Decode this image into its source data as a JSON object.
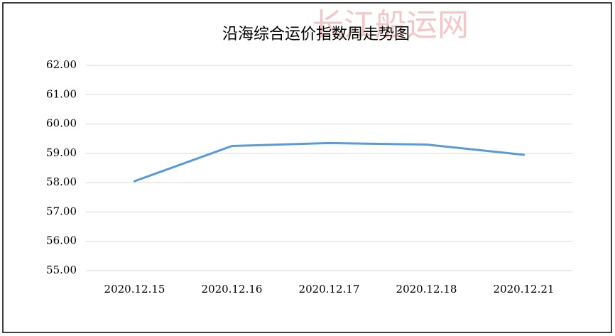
{
  "chart_data": {
    "type": "line",
    "title": "沿海综合运价指数周走势图",
    "watermark": "长江船运网",
    "categories": [
      "2020.12.15",
      "2020.12.16",
      "2020.12.17",
      "2020.12.18",
      "2020.12.21"
    ],
    "values": [
      58.05,
      59.25,
      59.35,
      59.3,
      58.95
    ],
    "color": "#5b9bd5",
    "ylim": [
      55,
      62
    ],
    "yticks": [
      {
        "value": 55,
        "label": "55.00"
      },
      {
        "value": 56,
        "label": "56.00"
      },
      {
        "value": 57,
        "label": "57.00"
      },
      {
        "value": 58,
        "label": "58.00"
      },
      {
        "value": 59,
        "label": "59.00"
      },
      {
        "value": 60,
        "label": "60.00"
      },
      {
        "value": 61,
        "label": "61.00"
      },
      {
        "value": 62,
        "label": "62.00"
      }
    ],
    "grid": true
  }
}
